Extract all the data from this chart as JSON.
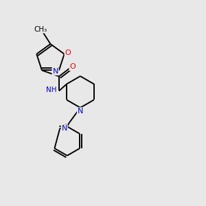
{
  "bg_color": "#e8e8e8",
  "bond_color": "#000000",
  "atom_colors": {
    "N": "#0000ff",
    "O": "#ff0000",
    "H": "#4a9090",
    "C": "#000000"
  }
}
